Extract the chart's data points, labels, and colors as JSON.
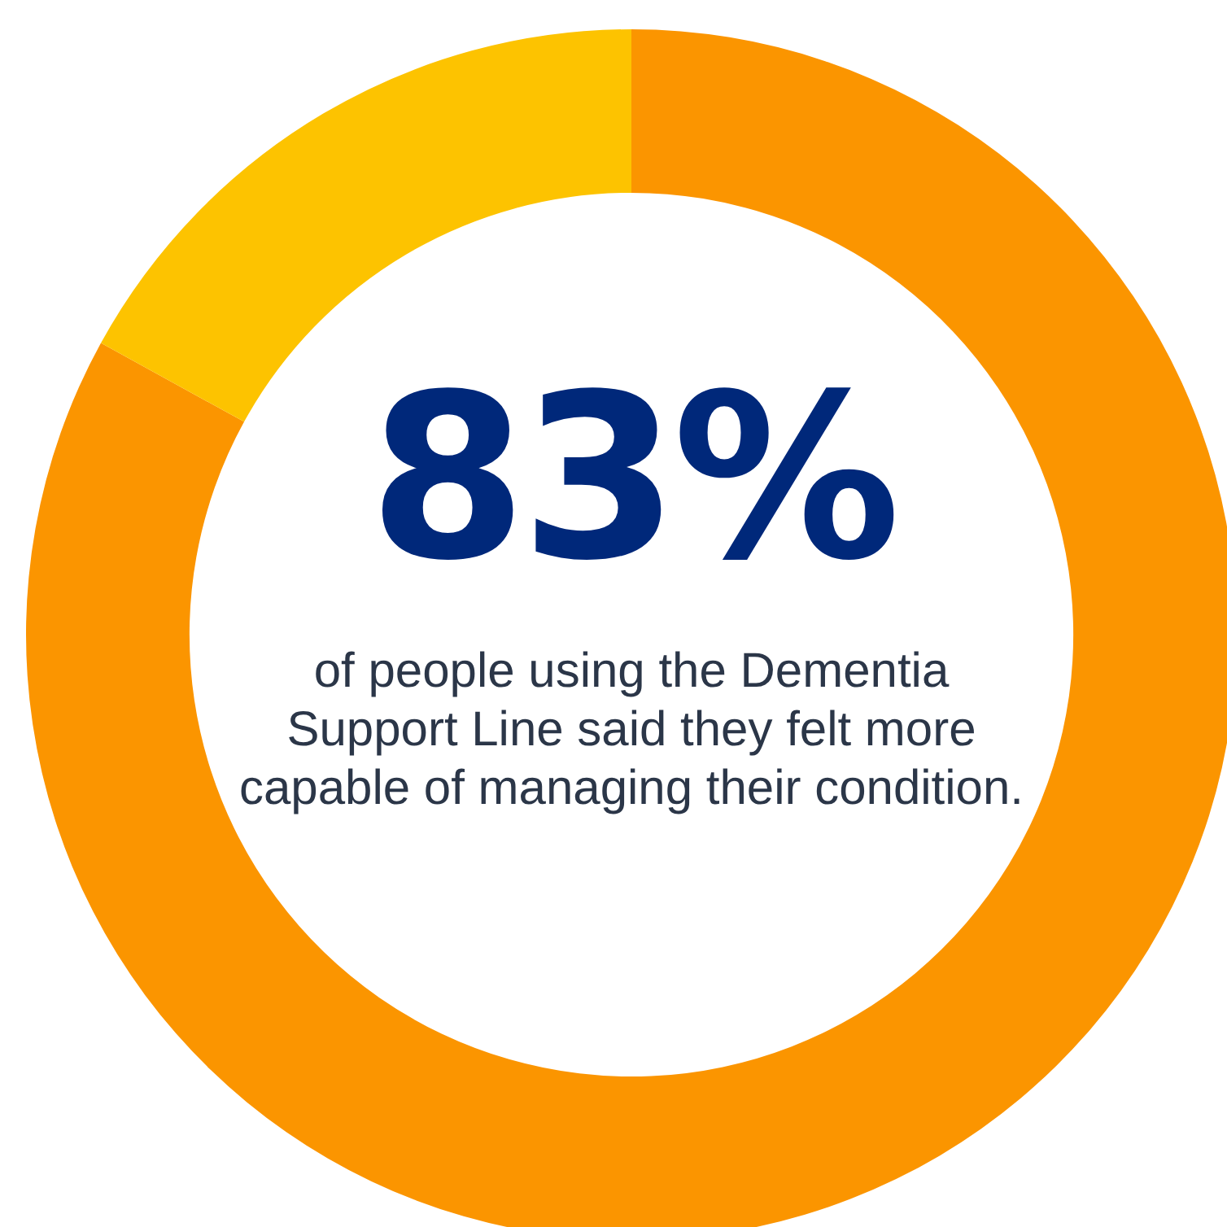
{
  "chart_data": {
    "type": "donut",
    "categories": [
      null,
      null
    ],
    "values": [
      83,
      17
    ],
    "colors": [
      "#fb9500",
      "#fdc300"
    ],
    "annotations": [
      "83%",
      "of people using the Dementia Support Line said they felt more capable of managing their condition."
    ],
    "legend": false
  }
}
